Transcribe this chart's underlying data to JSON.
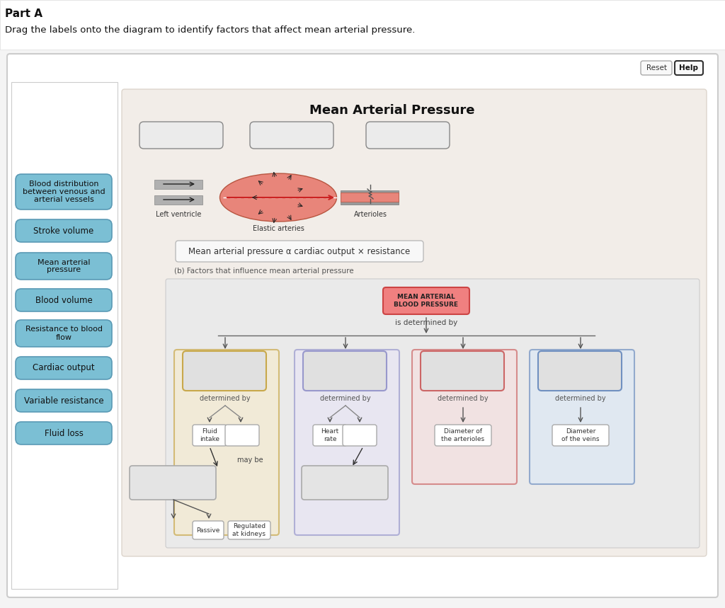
{
  "title_part": "Part A",
  "subtitle": "Drag the labels onto the diagram to identify factors that affect mean arterial pressure.",
  "page_bg": "#f0f0f0",
  "outer_box_bg": "#ffffff",
  "inner_diagram_bg": "#f2ede8",
  "diagram_title": "Mean Arterial Pressure",
  "formula_text": "Mean arterial pressure α cardiac output × resistance",
  "factors_label": "(b) Factors that influence mean arterial pressure",
  "mean_arterial_box_text": "MEAN ARTERIAL\nBLOOD PRESSURE",
  "is_determined_by": "is determined by",
  "left_buttons": [
    "Blood distribution\nbetween venous and\narterial vessels",
    "Stroke volume",
    "Mean arterial\npressure",
    "Blood volume",
    "Resistance to blood\nflow",
    "Cardiac output",
    "Variable resistance",
    "Fluid loss"
  ],
  "col1_color_bg": "#f5ead0",
  "col1_color_border": "#c8a84b",
  "col2_color_bg": "#e8e5f5",
  "col2_color_border": "#9898cc",
  "col3_color_bg": "#f5e0e0",
  "col3_color_border": "#cc6666",
  "col4_color_bg": "#dce8f5",
  "col4_color_border": "#7090c0",
  "button_bg": "#7bbfd4",
  "button_border": "#5a9ab5",
  "reset_button_text": "Reset",
  "help_button_text": "Help",
  "determined_by_text": "determined by",
  "may_be_text": "may be",
  "passive_text": "Passive",
  "regulated_text": "Regulated\nat kidneys",
  "left_ventricle_text": "Left ventricle",
  "elastic_arteries_text": "Elastic arteries",
  "arterioles_text": "Arterioles"
}
